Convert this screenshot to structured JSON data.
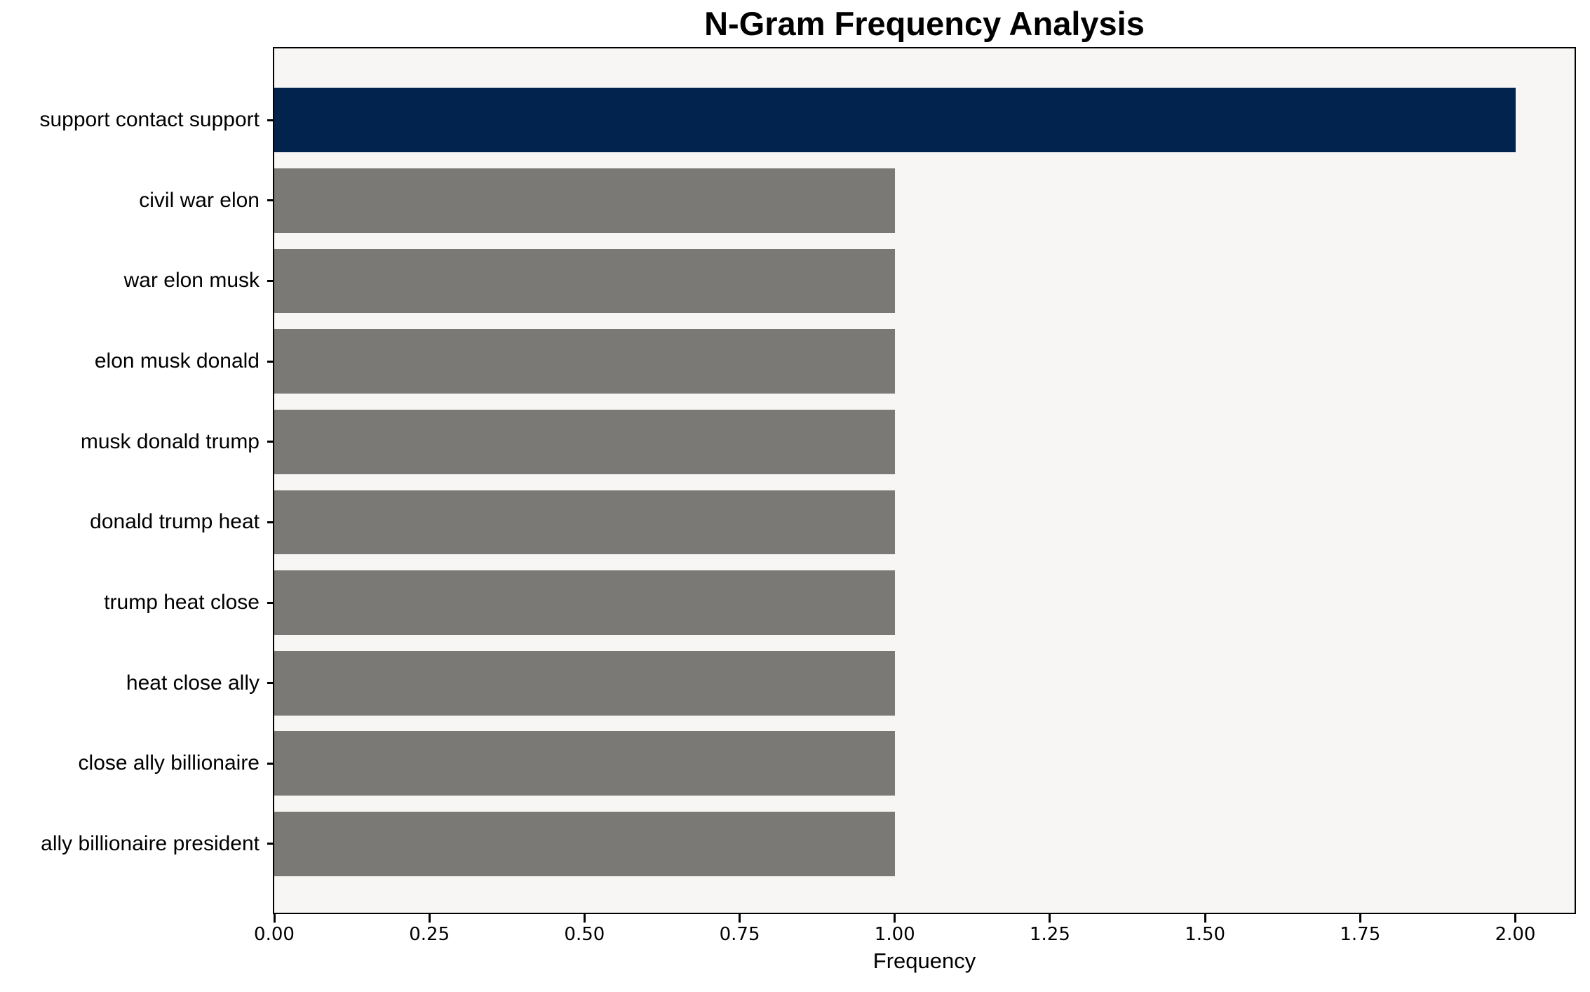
{
  "chart_data": {
    "type": "bar",
    "orientation": "horizontal",
    "title": "N-Gram Frequency Analysis",
    "xlabel": "Frequency",
    "ylabel": "",
    "categories": [
      "support contact support",
      "civil war elon",
      "war elon musk",
      "elon musk donald",
      "musk donald trump",
      "donald trump heat",
      "trump heat close",
      "heat close ally",
      "close ally billionaire",
      "ally billionaire president"
    ],
    "values": [
      2,
      1,
      1,
      1,
      1,
      1,
      1,
      1,
      1,
      1
    ],
    "bar_colors": [
      "#02234D",
      "#7A7975",
      "#7A7975",
      "#7A7975",
      "#7A7975",
      "#7A7975",
      "#7A7975",
      "#7A7975",
      "#7A7975",
      "#7A7975"
    ],
    "xlim": [
      0,
      2.1
    ],
    "x_tick_values": [
      0,
      0.25,
      0.5,
      0.75,
      1.0,
      1.25,
      1.5,
      1.75,
      2.0
    ],
    "x_tick_labels": [
      "0.00",
      "0.25",
      "0.50",
      "0.75",
      "1.00",
      "1.25",
      "1.50",
      "1.75",
      "2.00"
    ],
    "grid": false,
    "legend": null,
    "colors": {
      "highlight_bar": "#02234D",
      "default_bar": "#7A7975",
      "plot_background": "#F7F6F5",
      "figure_background": "#FFFFFF",
      "frame": "#000000",
      "text": "#000000"
    }
  }
}
